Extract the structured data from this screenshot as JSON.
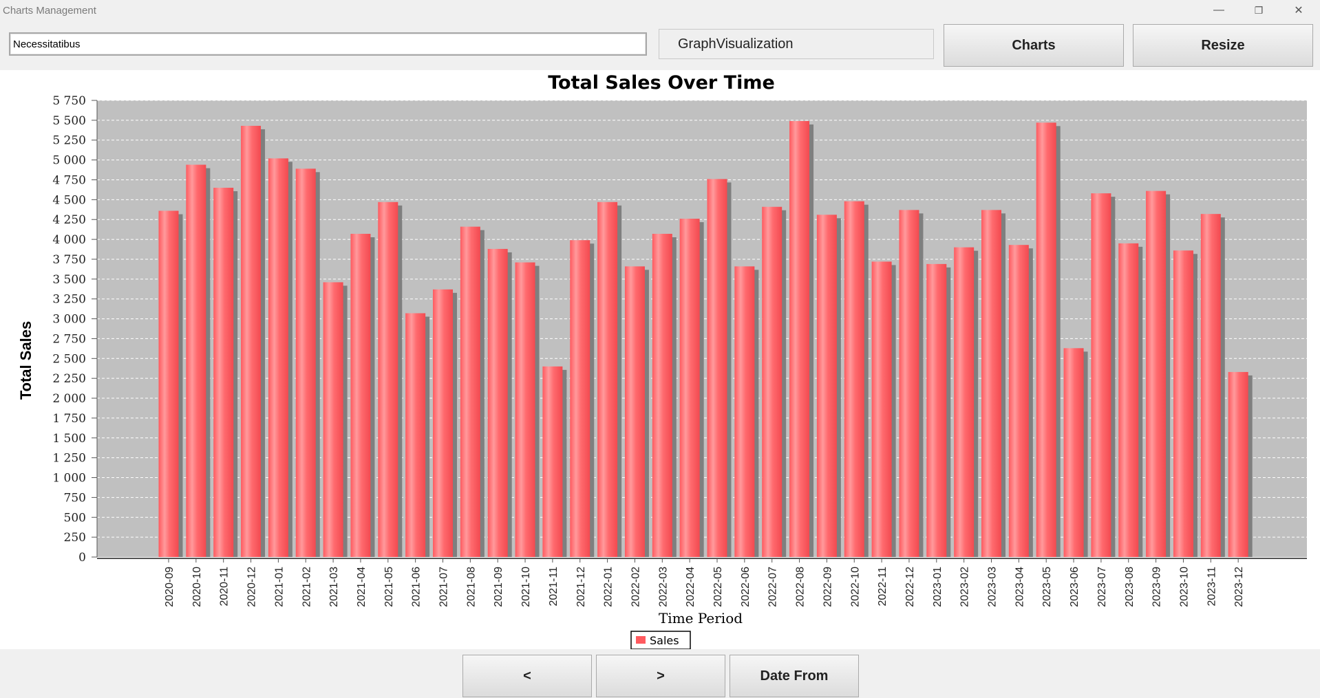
{
  "window": {
    "title": "Charts Management",
    "minimize_glyph": "—",
    "restore_glyph": "❐",
    "close_glyph": "✕"
  },
  "toolbar": {
    "search_value": "Necessitatibus",
    "graph_label": "GraphVisualization",
    "charts_button": "Charts",
    "resize_button": "Resize"
  },
  "navigation": {
    "prev_button": "<",
    "next_button": ">",
    "date_from_button": "Date From"
  },
  "colors": {
    "bar": "#ff5a5f",
    "bar_shadow": "#7f7f7f",
    "plot_background": "#c0c0c0"
  },
  "chart_data": {
    "type": "bar",
    "title": "Total Sales Over Time",
    "xlabel": "Time Period",
    "ylabel": "Total Sales",
    "ylim": [
      0,
      5750
    ],
    "yticks": [
      0,
      250,
      500,
      750,
      1000,
      1250,
      1500,
      1750,
      2000,
      2250,
      2500,
      2750,
      3000,
      3250,
      3500,
      3750,
      4000,
      4250,
      4500,
      4750,
      5000,
      5250,
      5500,
      5750
    ],
    "ytick_labels": [
      "0",
      "250",
      "500",
      "750",
      "1 000",
      "1 250",
      "1 500",
      "1 750",
      "2 000",
      "2 250",
      "2 500",
      "2 750",
      "3 000",
      "3 250",
      "3 500",
      "3 750",
      "4 000",
      "4 250",
      "4 500",
      "4 750",
      "5 000",
      "5 250",
      "5 500",
      "5 750"
    ],
    "grid": true,
    "legend_position": "bottom",
    "categories": [
      "2020-09",
      "2020-10",
      "2020-11",
      "2020-12",
      "2021-01",
      "2021-02",
      "2021-03",
      "2021-04",
      "2021-05",
      "2021-06",
      "2021-07",
      "2021-08",
      "2021-09",
      "2021-10",
      "2021-11",
      "2021-12",
      "2022-01",
      "2022-02",
      "2022-03",
      "2022-04",
      "2022-05",
      "2022-06",
      "2022-07",
      "2022-08",
      "2022-09",
      "2022-10",
      "2022-11",
      "2022-12",
      "2023-01",
      "2023-02",
      "2023-03",
      "2023-04",
      "2023-05",
      "2023-06",
      "2023-07",
      "2023-08",
      "2023-09",
      "2023-10",
      "2023-11",
      "2023-12"
    ],
    "series": [
      {
        "name": "Sales",
        "values": [
          4360,
          4940,
          4650,
          5430,
          5020,
          4890,
          3460,
          4070,
          4470,
          3070,
          3370,
          4160,
          3880,
          3710,
          2400,
          3990,
          4470,
          3660,
          4070,
          4260,
          4760,
          3660,
          4410,
          5490,
          4310,
          4480,
          3720,
          4370,
          3690,
          3900,
          4370,
          3930,
          5470,
          2630,
          4580,
          3950,
          4610,
          3860,
          4320,
          2330
        ]
      }
    ]
  }
}
